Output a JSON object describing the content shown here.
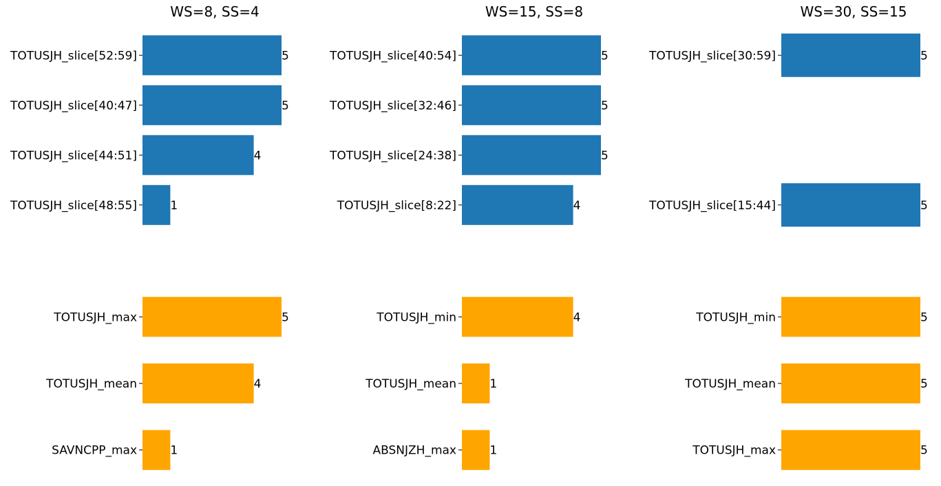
{
  "colors": {
    "slice": "#1f77b4",
    "stat": "#ffa500"
  },
  "chart_data": [
    {
      "type": "bar",
      "orientation": "horizontal",
      "title": "WS=8, SS=4",
      "xlim": [
        0,
        5
      ],
      "groups": [
        {
          "name": "slice",
          "color_key": "slice",
          "categories": [
            "TOTUSJH_slice[52:59]",
            "TOTUSJH_slice[40:47]",
            "TOTUSJH_slice[44:51]",
            "TOTUSJH_slice[48:55]"
          ],
          "values": [
            5,
            5,
            4,
            1
          ]
        },
        {
          "name": "stat",
          "color_key": "stat",
          "categories": [
            "TOTUSJH_max",
            "TOTUSJH_mean",
            "SAVNCPP_max"
          ],
          "values": [
            5,
            4,
            1
          ]
        }
      ]
    },
    {
      "type": "bar",
      "orientation": "horizontal",
      "title": "WS=15, SS=8",
      "xlim": [
        0,
        5
      ],
      "groups": [
        {
          "name": "slice",
          "color_key": "slice",
          "categories": [
            "TOTUSJH_slice[40:54]",
            "TOTUSJH_slice[32:46]",
            "TOTUSJH_slice[24:38]",
            "TOTUSJH_slice[8:22]"
          ],
          "values": [
            5,
            5,
            5,
            4
          ]
        },
        {
          "name": "stat",
          "color_key": "stat",
          "categories": [
            "TOTUSJH_min",
            "TOTUSJH_mean",
            "ABSNJZH_max"
          ],
          "values": [
            4,
            1,
            1
          ]
        }
      ]
    },
    {
      "type": "bar",
      "orientation": "horizontal",
      "title": "WS=30, SS=15",
      "xlim": [
        0,
        5
      ],
      "groups": [
        {
          "name": "slice",
          "color_key": "slice",
          "categories": [
            "TOTUSJH_slice[30:59]",
            "TOTUSJH_slice[15:44]"
          ],
          "values": [
            5,
            5
          ]
        },
        {
          "name": "stat",
          "color_key": "stat",
          "categories": [
            "TOTUSJH_min",
            "TOTUSJH_mean",
            "TOTUSJH_max"
          ],
          "values": [
            5,
            5,
            5
          ]
        }
      ]
    }
  ]
}
